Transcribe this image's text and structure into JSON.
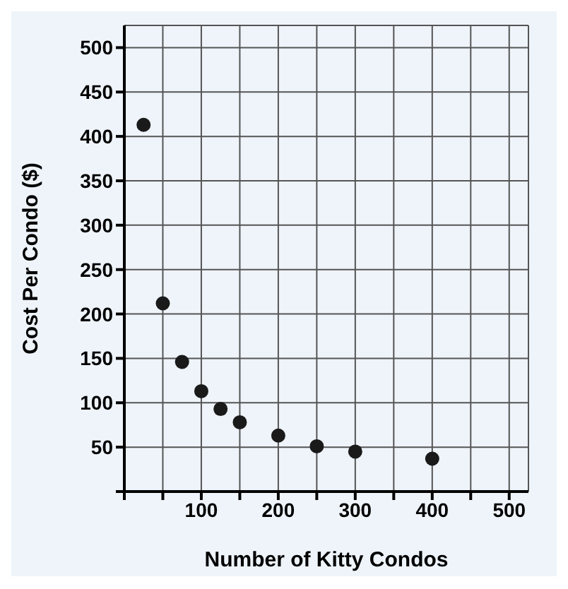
{
  "chart_data": {
    "type": "scatter",
    "xlabel": "Number of Kitty Condos",
    "ylabel": "Cost Per Condo ($)",
    "x": [
      25,
      50,
      75,
      100,
      125,
      150,
      200,
      250,
      300,
      400
    ],
    "values": [
      413,
      212,
      146,
      113,
      93,
      78,
      63,
      51,
      45,
      37
    ],
    "color": "#1a1a1a",
    "marker": "circle",
    "grid": true,
    "xlim": [
      0,
      525
    ],
    "ylim": [
      0,
      525
    ],
    "xticks": [
      {
        "value": 0,
        "label": null
      },
      {
        "value": 50,
        "label": null
      },
      100,
      {
        "value": 150,
        "label": null
      },
      200,
      {
        "value": 250,
        "label": null
      },
      300,
      {
        "value": 350,
        "label": null
      },
      400,
      {
        "value": 450,
        "label": null
      },
      500
    ],
    "yticks": [
      {
        "value": 0,
        "label": null
      },
      50,
      100,
      150,
      200,
      250,
      300,
      350,
      400,
      450,
      500
    ]
  }
}
